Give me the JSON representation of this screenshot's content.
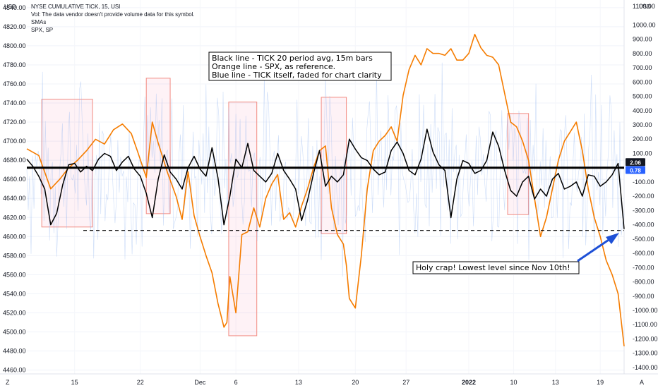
{
  "header": {
    "title": "NYSE CUMULATIVE TICK, 15, USI",
    "vol_note": "Vol: The data vendor doesn't provide volume data for this symbol.",
    "smas": "SMAs",
    "spx": "SPX, SP",
    "currency_left": "USD",
    "currency_right": "USD",
    "corner_left": "Z",
    "corner_right": "A"
  },
  "annotations": {
    "legend_lines": [
      "Black line - TICK 20 period avg, 15m bars",
      "Orange line - SPX, as reference.",
      "Blue line - TICK itself, faded for chart clarity"
    ],
    "callout": "Holy crap!  Lowest level since Nov 10th!"
  },
  "chart_data": {
    "type": "line",
    "x_ticks": [
      "15",
      "22",
      "Dec",
      "6",
      "13",
      "20",
      "27",
      "2022",
      "10",
      "13",
      "19"
    ],
    "left_axis": {
      "range": [
        4456,
        4848
      ],
      "ticks": [
        "4840.00",
        "4820.00",
        "4800.00",
        "4780.00",
        "4760.00",
        "4740.00",
        "4720.00",
        "4700.00",
        "4680.00",
        "4660.00",
        "4640.00",
        "4620.00",
        "4600.00",
        "4580.00",
        "4560.00",
        "4540.00",
        "4520.00",
        "4500.00",
        "4480.00",
        "4460.00"
      ]
    },
    "right_axis": {
      "range": [
        -1445,
        1175
      ],
      "ticks": [
        "1000.00",
        "900.00",
        "800.00",
        "700.00",
        "600.00",
        "500.00",
        "400.00",
        "300.00",
        "200.00",
        "100.00",
        "-100.00",
        "-200.00",
        "-300.00",
        "-400.00",
        "-500.00",
        "-600.00",
        "-700.00",
        "-800.00",
        "-900.00",
        "-1000.00",
        "-1100.00",
        "-1200.00",
        "-1300.00",
        "-1400.00"
      ],
      "top_partial": "1100.00"
    },
    "price_labels": [
      {
        "text": "2.06",
        "value": 2.06,
        "bg": "#131722"
      },
      {
        "text": "0.78",
        "value": 0.78,
        "bg": "#2962ff"
      }
    ],
    "reference_lines": [
      {
        "style": "solid",
        "axis": "right",
        "value": 0,
        "color": "#000000"
      },
      {
        "style": "dashed",
        "axis": "right",
        "value": -440,
        "color": "#000000"
      }
    ],
    "series": [
      {
        "axis": "left",
        "color": "#f57c00",
        "x": [
          0,
          0.02,
          0.04,
          0.055,
          0.07,
          0.085,
          0.1,
          0.115,
          0.13,
          0.145,
          0.16,
          0.175,
          0.185,
          0.2,
          0.21,
          0.22,
          0.235,
          0.25,
          0.26,
          0.27,
          0.28,
          0.29,
          0.3,
          0.31,
          0.32,
          0.33,
          0.335,
          0.34,
          0.35,
          0.36,
          0.37,
          0.38,
          0.39,
          0.4,
          0.41,
          0.42,
          0.43,
          0.44,
          0.45,
          0.46,
          0.47,
          0.48,
          0.49,
          0.5,
          0.51,
          0.52,
          0.53,
          0.535,
          0.54,
          0.55,
          0.56,
          0.57,
          0.58,
          0.59,
          0.6,
          0.61,
          0.62,
          0.63,
          0.64,
          0.65,
          0.66,
          0.67,
          0.68,
          0.69,
          0.7,
          0.71,
          0.72,
          0.73,
          0.74,
          0.75,
          0.76,
          0.77,
          0.78,
          0.79,
          0.8,
          0.81,
          0.82,
          0.83,
          0.84,
          0.85,
          0.86,
          0.87,
          0.88,
          0.89,
          0.9,
          0.91,
          0.92,
          0.93,
          0.94,
          0.95,
          0.96,
          0.97,
          0.98,
          0.99,
          1.0
        ],
        "values": [
          4692,
          4685,
          4650,
          4660,
          4672,
          4680,
          4690,
          4702,
          4697,
          4712,
          4718,
          4708,
          4690,
          4662,
          4720,
          4698,
          4668,
          4642,
          4618,
          4668,
          4622,
          4600,
          4580,
          4562,
          4530,
          4505,
          4510,
          4558,
          4520,
          4602,
          4605,
          4630,
          4610,
          4640,
          4655,
          4665,
          4618,
          4625,
          4610,
          4632,
          4650,
          4672,
          4690,
          4695,
          4630,
          4602,
          4592,
          4570,
          4535,
          4525,
          4580,
          4650,
          4690,
          4700,
          4706,
          4715,
          4700,
          4748,
          4775,
          4790,
          4780,
          4797,
          4792,
          4792,
          4790,
          4797,
          4785,
          4785,
          4792,
          4812,
          4798,
          4790,
          4788,
          4780,
          4750,
          4720,
          4715,
          4700,
          4680,
          4640,
          4600,
          4620,
          4650,
          4680,
          4700,
          4710,
          4720,
          4690,
          4650,
          4620,
          4600,
          4575,
          4560,
          4540,
          4485
        ]
      },
      {
        "axis": "right",
        "color": "#000000",
        "x": [
          0,
          0.01,
          0.02,
          0.03,
          0.04,
          0.05,
          0.06,
          0.07,
          0.08,
          0.09,
          0.1,
          0.11,
          0.12,
          0.13,
          0.14,
          0.15,
          0.16,
          0.17,
          0.18,
          0.19,
          0.2,
          0.21,
          0.22,
          0.23,
          0.24,
          0.25,
          0.26,
          0.27,
          0.28,
          0.29,
          0.3,
          0.31,
          0.32,
          0.33,
          0.34,
          0.35,
          0.36,
          0.37,
          0.38,
          0.39,
          0.4,
          0.41,
          0.42,
          0.43,
          0.44,
          0.45,
          0.46,
          0.47,
          0.48,
          0.49,
          0.5,
          0.51,
          0.52,
          0.53,
          0.54,
          0.55,
          0.56,
          0.57,
          0.58,
          0.59,
          0.6,
          0.61,
          0.62,
          0.63,
          0.64,
          0.65,
          0.66,
          0.67,
          0.68,
          0.69,
          0.7,
          0.71,
          0.72,
          0.73,
          0.74,
          0.75,
          0.76,
          0.77,
          0.78,
          0.79,
          0.8,
          0.81,
          0.82,
          0.83,
          0.84,
          0.85,
          0.86,
          0.87,
          0.88,
          0.89,
          0.9,
          0.91,
          0.92,
          0.93,
          0.94,
          0.95,
          0.96,
          0.97,
          0.98,
          0.99,
          1.0
        ],
        "values": [
          60,
          10,
          -60,
          -150,
          -400,
          -320,
          -120,
          20,
          30,
          -30,
          10,
          -20,
          60,
          100,
          80,
          -20,
          40,
          80,
          -10,
          -60,
          -180,
          -350,
          -80,
          90,
          -30,
          -80,
          -150,
          0,
          80,
          -10,
          -60,
          140,
          -70,
          -400,
          -200,
          60,
          0,
          170,
          -20,
          -60,
          -100,
          -40,
          100,
          -20,
          -80,
          -150,
          -370,
          -230,
          -40,
          120,
          -130,
          -60,
          -100,
          -50,
          200,
          130,
          70,
          50,
          -10,
          -50,
          -30,
          120,
          180,
          100,
          -20,
          -50,
          60,
          270,
          110,
          20,
          -20,
          -350,
          -80,
          50,
          30,
          -40,
          -20,
          50,
          250,
          150,
          -20,
          -160,
          -200,
          -100,
          -60,
          -220,
          -150,
          -200,
          -80,
          -40,
          -150,
          -130,
          -100,
          -200,
          -50,
          -60,
          -130,
          -100,
          -50,
          30,
          -430
        ]
      }
    ],
    "faded_series": {
      "name": "TICK",
      "axis": "right",
      "color": "#90b4ef",
      "amplitude": 520
    },
    "boxes": [
      {
        "x0": 0.025,
        "x1": 0.11,
        "top": 4744,
        "bottom": 4610
      },
      {
        "x0": 0.2,
        "x1": 0.24,
        "top": 4766,
        "bottom": 4624
      },
      {
        "x0": 0.338,
        "x1": 0.385,
        "top": 4741,
        "bottom": 4496
      },
      {
        "x0": 0.493,
        "x1": 0.535,
        "top": 4746,
        "bottom": 4603
      },
      {
        "x0": 0.805,
        "x1": 0.84,
        "top": 4729,
        "bottom": 4623
      }
    ]
  }
}
